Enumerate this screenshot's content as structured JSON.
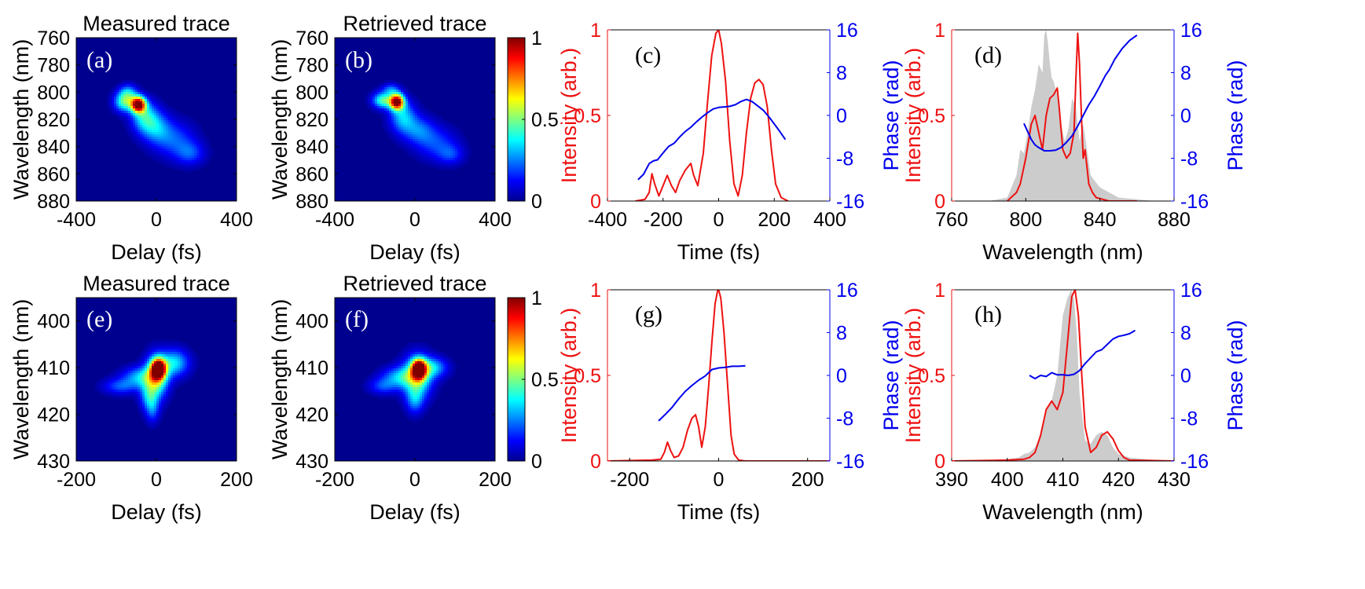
{
  "colors": {
    "intensity": "#ee1111",
    "phase": "#0000ee",
    "spectrum_fill": "#cccccc",
    "heatmap_bg": "#00008f"
  },
  "chart_data": [
    {
      "id": "a",
      "type": "heatmap",
      "panel_label": "(a)",
      "title": "Measured trace",
      "xlabel": "Delay (fs)",
      "ylabel": "Wavelength (nm)",
      "xlim": [
        -400,
        400
      ],
      "ylim": [
        880,
        760
      ],
      "xticks": [
        -400,
        0,
        400
      ],
      "yticks": [
        760,
        780,
        800,
        820,
        840,
        860,
        880
      ],
      "peak": {
        "x": -90,
        "y": 809
      },
      "blobs": [
        {
          "x": -90,
          "y": 809,
          "wx": 25,
          "wy": 4,
          "a": 1.0
        },
        {
          "x": -160,
          "y": 807,
          "wx": 35,
          "wy": 5,
          "a": 0.45
        },
        {
          "x": -60,
          "y": 818,
          "wx": 45,
          "wy": 8,
          "a": 0.35
        },
        {
          "x": 0,
          "y": 826,
          "wx": 50,
          "wy": 8,
          "a": 0.25
        },
        {
          "x": 90,
          "y": 835,
          "wx": 70,
          "wy": 9,
          "a": 0.2
        },
        {
          "x": 170,
          "y": 845,
          "wx": 50,
          "wy": 6,
          "a": 0.18
        },
        {
          "x": -140,
          "y": 800,
          "wx": 30,
          "wy": 4,
          "a": 0.25
        }
      ]
    },
    {
      "id": "b",
      "type": "heatmap",
      "panel_label": "(b)",
      "title": "Retrieved trace",
      "xlabel": "Delay (fs)",
      "ylabel": "Wavelength (nm)",
      "xlim": [
        -400,
        400
      ],
      "ylim": [
        880,
        760
      ],
      "xticks": [
        -400,
        0,
        400
      ],
      "yticks": [
        760,
        780,
        800,
        820,
        840,
        860,
        880
      ],
      "colorbar": {
        "ticks": [
          0,
          0.5,
          1
        ]
      },
      "peak": {
        "x": -90,
        "y": 807
      },
      "blobs": [
        {
          "x": -90,
          "y": 807,
          "wx": 25,
          "wy": 4,
          "a": 1.0
        },
        {
          "x": -160,
          "y": 806,
          "wx": 35,
          "wy": 4,
          "a": 0.45
        },
        {
          "x": -60,
          "y": 818,
          "wx": 45,
          "wy": 8,
          "a": 0.32
        },
        {
          "x": 20,
          "y": 828,
          "wx": 55,
          "wy": 7,
          "a": 0.22
        },
        {
          "x": 110,
          "y": 838,
          "wx": 70,
          "wy": 8,
          "a": 0.18
        },
        {
          "x": 180,
          "y": 846,
          "wx": 45,
          "wy": 5,
          "a": 0.15
        },
        {
          "x": -120,
          "y": 798,
          "wx": 30,
          "wy": 3,
          "a": 0.22
        }
      ]
    },
    {
      "id": "c",
      "type": "line",
      "panel_label": "(c)",
      "xlabel": "Time (fs)",
      "ylabel_left": "Intensity (arb.)",
      "ylabel_right": "Phase (rad)",
      "xlim": [
        -400,
        400
      ],
      "ylim_left": [
        0,
        1
      ],
      "ylim_right": [
        -16,
        16
      ],
      "xticks": [
        -400,
        -200,
        0,
        200,
        400
      ],
      "yticks_left": [
        0,
        0.5,
        1
      ],
      "yticks_right": [
        -16,
        -8,
        0,
        8,
        16
      ],
      "series": [
        {
          "axis": "left",
          "x": [
            -300,
            -265,
            -250,
            -240,
            -230,
            -215,
            -200,
            -185,
            -170,
            -155,
            -140,
            -120,
            -100,
            -90,
            -75,
            -55,
            -40,
            -25,
            -10,
            0,
            10,
            25,
            40,
            55,
            70,
            85,
            100,
            115,
            130,
            145,
            160,
            175,
            190,
            205,
            225,
            250
          ],
          "y": [
            0,
            0.01,
            0.05,
            0.16,
            0.1,
            0.03,
            0.09,
            0.15,
            0.09,
            0.05,
            0.12,
            0.18,
            0.22,
            0.15,
            0.09,
            0.28,
            0.58,
            0.85,
            0.98,
            1.0,
            0.92,
            0.7,
            0.35,
            0.1,
            0.03,
            0.15,
            0.4,
            0.6,
            0.69,
            0.71,
            0.68,
            0.55,
            0.3,
            0.1,
            0.02,
            0
          ]
        },
        {
          "axis": "right",
          "x": [
            -290,
            -270,
            -250,
            -235,
            -220,
            -200,
            -180,
            -160,
            -140,
            -120,
            -100,
            -80,
            -60,
            -40,
            -20,
            0,
            20,
            40,
            60,
            80,
            100,
            120,
            140,
            160,
            180,
            200,
            220,
            240
          ],
          "y": [
            -12,
            -11,
            -9,
            -8.5,
            -8.3,
            -7,
            -5.8,
            -5.2,
            -4,
            -3,
            -2.2,
            -1.2,
            -0.3,
            0.5,
            1.2,
            1.5,
            1.6,
            1.7,
            2,
            2.6,
            3,
            2.6,
            1.8,
            1,
            -0.2,
            -1.6,
            -3,
            -4.5
          ]
        }
      ]
    },
    {
      "id": "d",
      "type": "line",
      "panel_label": "(d)",
      "xlabel": "Wavelength (nm)",
      "ylabel_left": "Intensity (arb.)",
      "ylabel_right": "Phase (rad)",
      "xlim": [
        760,
        880
      ],
      "ylim_left": [
        0,
        1
      ],
      "ylim_right": [
        -16,
        16
      ],
      "xticks": [
        760,
        800,
        840,
        880
      ],
      "yticks_left": [
        0,
        0.5,
        1
      ],
      "yticks_right": [
        -16,
        -8,
        0,
        8,
        16
      ],
      "spectrum_fill": {
        "x": [
          780,
          790,
          795,
          797,
          799,
          801,
          803,
          805,
          807,
          809,
          810,
          811,
          812,
          813,
          814,
          815,
          817,
          819,
          821,
          823,
          825,
          827,
          829,
          831,
          833,
          835,
          837,
          840,
          845,
          850,
          860,
          870
        ],
        "y": [
          0,
          0.02,
          0.15,
          0.3,
          0.28,
          0.4,
          0.55,
          0.65,
          0.8,
          0.75,
          0.97,
          1.0,
          0.92,
          0.8,
          0.72,
          0.7,
          0.62,
          0.45,
          0.35,
          0.42,
          0.6,
          0.55,
          0.35,
          0.45,
          0.3,
          0.15,
          0.12,
          0.08,
          0.05,
          0.02,
          0.01,
          0
        ]
      },
      "series": [
        {
          "axis": "left",
          "x": [
            790,
            795,
            797,
            800,
            803,
            805,
            807,
            809,
            811,
            813,
            815,
            817,
            818,
            820,
            822,
            824,
            826,
            827,
            828,
            829,
            830,
            831,
            832,
            833,
            834,
            836,
            838,
            845,
            860
          ],
          "y": [
            0,
            0.05,
            0.1,
            0.25,
            0.45,
            0.5,
            0.4,
            0.3,
            0.5,
            0.6,
            0.62,
            0.66,
            0.55,
            0.3,
            0.25,
            0.28,
            0.4,
            0.7,
            0.98,
            0.8,
            0.5,
            0.25,
            0.3,
            0.2,
            0.1,
            0.05,
            0.02,
            0,
            0
          ]
        },
        {
          "axis": "right",
          "x": [
            799,
            801,
            803,
            805,
            807,
            810,
            813,
            816,
            819,
            822,
            825,
            828,
            831,
            834,
            837,
            840,
            843,
            845,
            848,
            852,
            856,
            860
          ],
          "y": [
            -1.5,
            -3,
            -4.5,
            -5.5,
            -6,
            -6.6,
            -6.6,
            -6.5,
            -6,
            -5,
            -3.8,
            -2,
            0,
            2,
            3.6,
            5.5,
            7.5,
            8.5,
            10.5,
            12.5,
            14,
            15
          ]
        }
      ]
    },
    {
      "id": "e",
      "type": "heatmap",
      "panel_label": "(e)",
      "title": "Measured trace",
      "xlabel": "Delay (fs)",
      "ylabel": "Wavelength (nm)",
      "xlim": [
        -200,
        200
      ],
      "ylim": [
        430,
        395
      ],
      "xticks": [
        -200,
        0,
        200
      ],
      "yticks": [
        400,
        410,
        420,
        430
      ],
      "peak": {
        "x": 5,
        "y": 410
      },
      "blobs": [
        {
          "x": 5,
          "y": 410.2,
          "wx": 12,
          "wy": 1.4,
          "a": 1.0
        },
        {
          "x": 0,
          "y": 412,
          "wx": 20,
          "wy": 3.0,
          "a": 0.55
        },
        {
          "x": 45,
          "y": 409,
          "wx": 25,
          "wy": 2.0,
          "a": 0.35
        },
        {
          "x": -40,
          "y": 412,
          "wx": 30,
          "wy": 1.5,
          "a": 0.3
        },
        {
          "x": -90,
          "y": 414,
          "wx": 30,
          "wy": 1.2,
          "a": 0.2
        },
        {
          "x": -20,
          "y": 416,
          "wx": 15,
          "wy": 2.0,
          "a": 0.25
        },
        {
          "x": -10,
          "y": 419,
          "wx": 12,
          "wy": 2.0,
          "a": 0.2
        }
      ]
    },
    {
      "id": "f",
      "type": "heatmap",
      "panel_label": "(f)",
      "title": "Retrieved trace",
      "xlabel": "Delay (fs)",
      "ylabel": "Wavelength (nm)",
      "xlim": [
        -200,
        200
      ],
      "ylim": [
        430,
        395
      ],
      "xticks": [
        -200,
        0,
        200
      ],
      "yticks": [
        400,
        410,
        420,
        430
      ],
      "colorbar": {
        "ticks": [
          0,
          0.5,
          1
        ]
      },
      "peak": {
        "x": 10,
        "y": 410
      },
      "blobs": [
        {
          "x": 10,
          "y": 410.3,
          "wx": 12,
          "wy": 1.4,
          "a": 1.0
        },
        {
          "x": 5,
          "y": 412,
          "wx": 25,
          "wy": 3.0,
          "a": 0.5
        },
        {
          "x": 45,
          "y": 410,
          "wx": 25,
          "wy": 1.5,
          "a": 0.3
        },
        {
          "x": -40,
          "y": 412,
          "wx": 30,
          "wy": 1.5,
          "a": 0.28
        },
        {
          "x": -80,
          "y": 414,
          "wx": 25,
          "wy": 1.2,
          "a": 0.18
        },
        {
          "x": 0,
          "y": 417,
          "wx": 15,
          "wy": 2.0,
          "a": 0.22
        }
      ]
    },
    {
      "id": "g",
      "type": "line",
      "panel_label": "(g)",
      "xlabel": "Time (fs)",
      "ylabel_left": "Intensity (arb.)",
      "ylabel_right": "Phase (rad)",
      "xlim": [
        -250,
        250
      ],
      "ylim_left": [
        0,
        1
      ],
      "ylim_right": [
        -16,
        16
      ],
      "xticks": [
        -200,
        0,
        200
      ],
      "yticks_left": [
        0,
        0.5,
        1
      ],
      "yticks_right": [
        -16,
        -8,
        0,
        8,
        16
      ],
      "series": [
        {
          "axis": "left",
          "x": [
            -250,
            -150,
            -130,
            -122,
            -115,
            -108,
            -100,
            -90,
            -80,
            -70,
            -60,
            -52,
            -45,
            -38,
            -30,
            -22,
            -15,
            -8,
            -2,
            0,
            5,
            12,
            20,
            28,
            35,
            45,
            60,
            100,
            250
          ],
          "y": [
            0,
            0.005,
            0.01,
            0.05,
            0.11,
            0.06,
            0.02,
            0.03,
            0.08,
            0.18,
            0.25,
            0.27,
            0.2,
            0.08,
            0.2,
            0.45,
            0.7,
            0.92,
            1.0,
            1.0,
            0.95,
            0.75,
            0.45,
            0.15,
            0.04,
            0.005,
            0,
            0,
            0
          ]
        },
        {
          "axis": "right",
          "x": [
            -135,
            -120,
            -105,
            -90,
            -75,
            -60,
            -45,
            -30,
            -15,
            0,
            15,
            30,
            45,
            60
          ],
          "y": [
            -8.5,
            -7.3,
            -6,
            -4.4,
            -3,
            -1.9,
            -0.9,
            -0.1,
            1.1,
            1.4,
            1.5,
            1.7,
            1.7,
            1.8
          ]
        }
      ]
    },
    {
      "id": "h",
      "type": "line",
      "panel_label": "(h)",
      "xlabel": "Wavelength (nm)",
      "ylabel_left": "Intensity (arb.)",
      "ylabel_right": "Phase (rad)",
      "xlim": [
        390,
        430
      ],
      "ylim_left": [
        0,
        1
      ],
      "ylim_right": [
        -16,
        16
      ],
      "xticks": [
        390,
        400,
        410,
        420,
        430
      ],
      "yticks_left": [
        0,
        0.5,
        1
      ],
      "yticks_right": [
        -16,
        -8,
        0,
        8,
        16
      ],
      "spectrum_fill": {
        "x": [
          395,
          400,
          402,
          403,
          404,
          405,
          406,
          407,
          408,
          409,
          410,
          410.8,
          411.5,
          412,
          412.5,
          413,
          414,
          415,
          416,
          417,
          418,
          419,
          420,
          422,
          425,
          430
        ],
        "y": [
          0,
          0.01,
          0.02,
          0.04,
          0.05,
          0.08,
          0.15,
          0.3,
          0.35,
          0.5,
          0.85,
          0.95,
          1.0,
          0.95,
          0.75,
          0.4,
          0.12,
          0.1,
          0.15,
          0.17,
          0.15,
          0.08,
          0.04,
          0.02,
          0.01,
          0
        ]
      },
      "series": [
        {
          "axis": "left",
          "x": [
            390,
            400,
            403,
            404,
            405,
            406,
            407,
            408,
            409,
            410,
            411,
            411.6,
            412.2,
            412.8,
            413.4,
            414,
            415,
            416,
            417,
            418,
            419,
            420,
            421,
            422,
            430
          ],
          "y": [
            0,
            0.005,
            0.01,
            0.02,
            0.05,
            0.15,
            0.3,
            0.35,
            0.3,
            0.4,
            0.75,
            0.96,
            1.0,
            0.85,
            0.5,
            0.2,
            0.05,
            0.08,
            0.15,
            0.17,
            0.13,
            0.06,
            0.02,
            0.005,
            0
          ]
        },
        {
          "axis": "right",
          "x": [
            404,
            405,
            406,
            407,
            408,
            409,
            410,
            411,
            412,
            413,
            414,
            415,
            416,
            417,
            418,
            419,
            420,
            421,
            422,
            423
          ],
          "y": [
            0,
            -0.6,
            0,
            -0.2,
            0.5,
            0.1,
            0.1,
            0,
            0.2,
            0.9,
            2.2,
            3.3,
            4.4,
            4.8,
            5.8,
            6.8,
            7.3,
            7.5,
            7.8,
            8.4
          ]
        }
      ]
    }
  ]
}
